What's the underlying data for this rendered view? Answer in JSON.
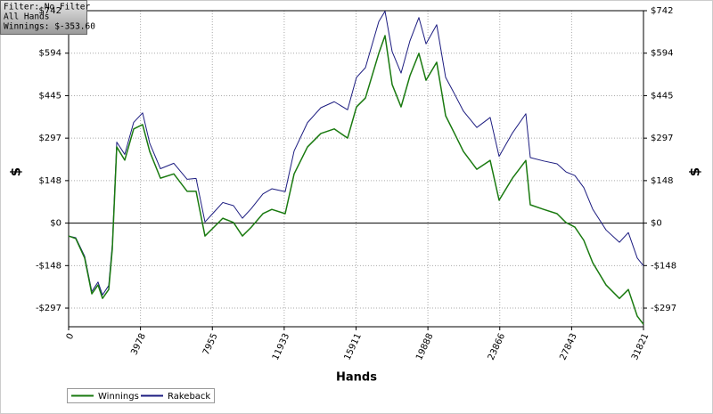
{
  "chart_data": {
    "type": "line",
    "x_label": "Hands",
    "y_label": "$",
    "annotations": [
      "Filter: No Filter",
      "All Hands",
      "Winnings: $-353.60"
    ],
    "xlim": [
      0,
      31821
    ],
    "xticks": [
      0,
      3978,
      7955,
      11933,
      15911,
      19888,
      23866,
      27843,
      31821
    ],
    "ylim": [
      -362,
      742
    ],
    "yticks": [
      {
        "value": 742,
        "label": "$742"
      },
      {
        "value": 593.6,
        "label": "$594"
      },
      {
        "value": 445.2,
        "label": "$445"
      },
      {
        "value": 296.8,
        "label": "$297"
      },
      {
        "value": 148.4,
        "label": "$148"
      },
      {
        "value": 0,
        "label": "$0"
      },
      {
        "value": -148.4,
        "label": "-$148"
      },
      {
        "value": -296.8,
        "label": "-$297"
      }
    ],
    "grid": true,
    "legend": "bottom-left",
    "x": [
      0,
      395,
      888,
      1283,
      1628,
      1875,
      2220,
      2417,
      2664,
      3108,
      3601,
      4095,
      4489,
      5082,
      5822,
      6562,
      7055,
      7548,
      8042,
      8535,
      9127,
      9620,
      10114,
      10755,
      11248,
      11988,
      12482,
      13222,
      13962,
      14702,
      15442,
      15935,
      16429,
      17169,
      17514,
      17909,
      18402,
      18895,
      19389,
      19783,
      20375,
      20869,
      21362,
      21855,
      22595,
      23335,
      23829,
      24569,
      25309,
      25555,
      26296,
      27036,
      27529,
      28022,
      28516,
      29009,
      29749,
      30489,
      30983,
      31476,
      31821
    ],
    "series": [
      {
        "name": "Winnings",
        "color": "#1a7a10",
        "values": [
          -45,
          -54,
          -122,
          -247,
          -216,
          -263,
          -232,
          -91,
          266,
          220,
          329,
          344,
          250,
          157,
          172,
          111,
          111,
          -45,
          -14,
          17,
          2,
          -45,
          -14,
          33,
          48,
          33,
          172,
          266,
          313,
          329,
          297,
          406,
          437,
          593,
          655,
          484,
          406,
          515,
          593,
          499,
          562,
          375,
          313,
          250,
          188,
          219,
          80,
          157,
          219,
          64,
          48,
          33,
          2,
          -14,
          -60,
          -138,
          -216,
          -263,
          -232,
          -325,
          -353.6
        ]
      },
      {
        "name": "Rakeback",
        "color": "#1c1c80",
        "values": [
          -45,
          -51,
          -116,
          -239,
          -206,
          -251,
          -218,
          -75,
          283,
          240,
          352,
          385,
          279,
          190,
          209,
          153,
          156,
          4,
          38,
          72,
          61,
          17,
          51,
          102,
          120,
          110,
          252,
          351,
          403,
          424,
          396,
          509,
          543,
          704,
          740,
          599,
          524,
          637,
          718,
          626,
          693,
          509,
          451,
          391,
          334,
          369,
          233,
          315,
          382,
          229,
          217,
          207,
          179,
          166,
          124,
          49,
          -24,
          -67,
          -33,
          -122,
          -149
        ]
      }
    ]
  }
}
